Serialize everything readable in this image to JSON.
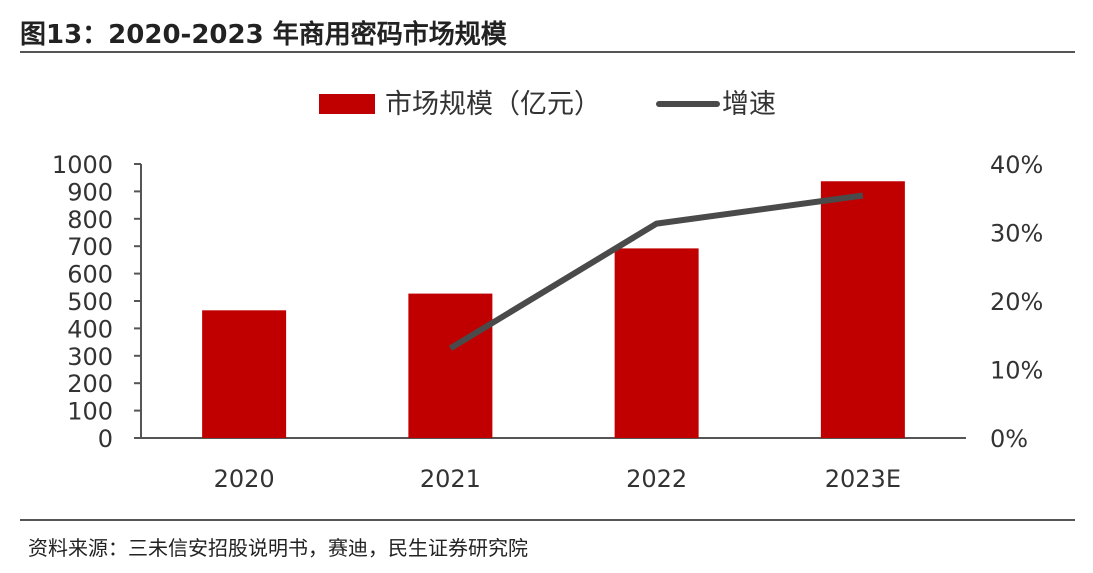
{
  "header": {
    "title": "图13：2020-2023 年商用密码市场规模"
  },
  "footer": {
    "source": "资料来源：三未信安招股说明书，赛迪，民生证券研究院"
  },
  "colors": {
    "bar": "#c00000",
    "line": "#4a4a4a",
    "axis": "#555555",
    "text": "#333333"
  },
  "chart_data": {
    "type": "bar",
    "title": "2020-2023 年商用密码市场规模",
    "categories": [
      "2020",
      "2021",
      "2022",
      "2023E"
    ],
    "series": [
      {
        "name": "市场规模（亿元）",
        "type": "bar",
        "axis": "left",
        "values": [
          466,
          527,
          692,
          937
        ]
      },
      {
        "name": "增速",
        "type": "line",
        "axis": "right",
        "values": [
          null,
          13.1,
          31.3,
          35.4
        ]
      }
    ],
    "y_left": {
      "min": 0,
      "max": 1000,
      "step": 100,
      "ticks": [
        "0",
        "100",
        "200",
        "300",
        "400",
        "500",
        "600",
        "700",
        "800",
        "900",
        "1000"
      ]
    },
    "y_right": {
      "min": 0,
      "max": 40,
      "step": 10,
      "ticks": [
        "0%",
        "10%",
        "20%",
        "30%",
        "40%"
      ]
    },
    "legend": {
      "position": "top-center",
      "items": [
        "市场规模（亿元）",
        "增速"
      ]
    },
    "grid": false
  }
}
